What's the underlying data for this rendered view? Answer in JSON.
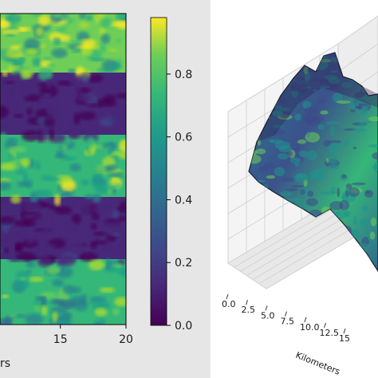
{
  "chart_data": [
    {
      "type": "heatmap",
      "colormap": "viridis",
      "x_tick_labels": [
        "15",
        "20"
      ],
      "x_tick_values": [
        15,
        20
      ],
      "xlim_visible": [
        10.4,
        20
      ],
      "xlabel_fragment": "rs",
      "colorbar": {
        "range": [
          0.0,
          0.98
        ],
        "ticks": [
          0.0,
          0.2,
          0.4,
          0.6,
          0.8
        ],
        "tick_labels": [
          "0.0",
          "0.2",
          "0.4",
          "0.6",
          "0.8"
        ]
      },
      "bands": [
        {
          "description": "high",
          "level": 0.75
        },
        {
          "description": "low",
          "level": 0.08
        },
        {
          "description": "high",
          "level": 0.7
        },
        {
          "description": "low",
          "level": 0.08
        },
        {
          "description": "high",
          "level": 0.65
        }
      ]
    },
    {
      "type": "surface3d",
      "colormap": "viridis",
      "x_tick_labels": [
        "0.0",
        "2.5",
        "5.0",
        "7.5",
        "10.0",
        "12.5",
        "15"
      ],
      "x_tick_values": [
        0.0,
        2.5,
        5.0,
        7.5,
        10.0,
        12.5,
        15
      ],
      "xlabel": "Kilometers",
      "grid": true
    }
  ],
  "colors": {
    "viridis_low": "#440154",
    "viridis_mid": "#21918c",
    "viridis_high": "#fde725",
    "panel_bg_left": "#e6e6e6",
    "panel_bg_right": "#ffffff"
  }
}
